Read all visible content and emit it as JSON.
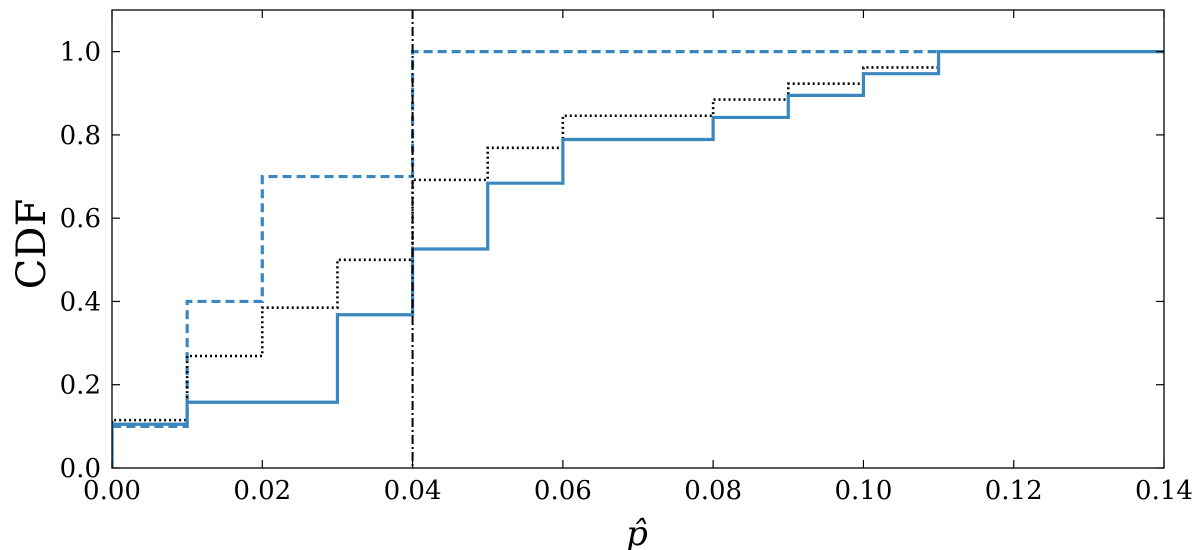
{
  "chart_data": {
    "type": "line",
    "step": "post",
    "xlabel": "p̂",
    "ylabel": "CDF",
    "xlim": [
      0.0,
      0.14
    ],
    "ylim": [
      0.0,
      1.1
    ],
    "xticks": [
      0.0,
      0.02,
      0.04,
      0.06,
      0.08,
      0.1,
      0.12,
      0.14
    ],
    "xtick_labels": [
      "0.00",
      "0.02",
      "0.04",
      "0.06",
      "0.08",
      "0.10",
      "0.12",
      "0.14"
    ],
    "yticks": [
      0.0,
      0.2,
      0.4,
      0.6,
      0.8,
      1.0
    ],
    "ytick_labels": [
      "0.0",
      "0.2",
      "0.4",
      "0.6",
      "0.8",
      "1.0"
    ],
    "grid": false,
    "series": [
      {
        "style": "solid",
        "color": "#3a87bf",
        "x": [
          0.0,
          0.01,
          0.03,
          0.04,
          0.05,
          0.06,
          0.08,
          0.09,
          0.1,
          0.11,
          0.14
        ],
        "y": [
          0.105,
          0.158,
          0.368,
          0.526,
          0.684,
          0.789,
          0.842,
          0.895,
          0.947,
          1.0,
          1.0
        ]
      },
      {
        "style": "dashed",
        "color": "#3a87bf",
        "x": [
          0.0,
          0.01,
          0.02,
          0.04,
          0.11
        ],
        "y": [
          0.1,
          0.4,
          0.7,
          1.0,
          1.0
        ]
      },
      {
        "style": "dotted",
        "color": "#000000",
        "x": [
          0.0,
          0.01,
          0.02,
          0.03,
          0.04,
          0.05,
          0.06,
          0.08,
          0.09,
          0.1,
          0.11
        ],
        "y": [
          0.115,
          0.269,
          0.385,
          0.5,
          0.692,
          0.769,
          0.846,
          0.885,
          0.923,
          0.962,
          1.0
        ]
      }
    ],
    "vlines": [
      {
        "x": 0.04,
        "style": "dashdot",
        "color": "#000000"
      }
    ]
  }
}
